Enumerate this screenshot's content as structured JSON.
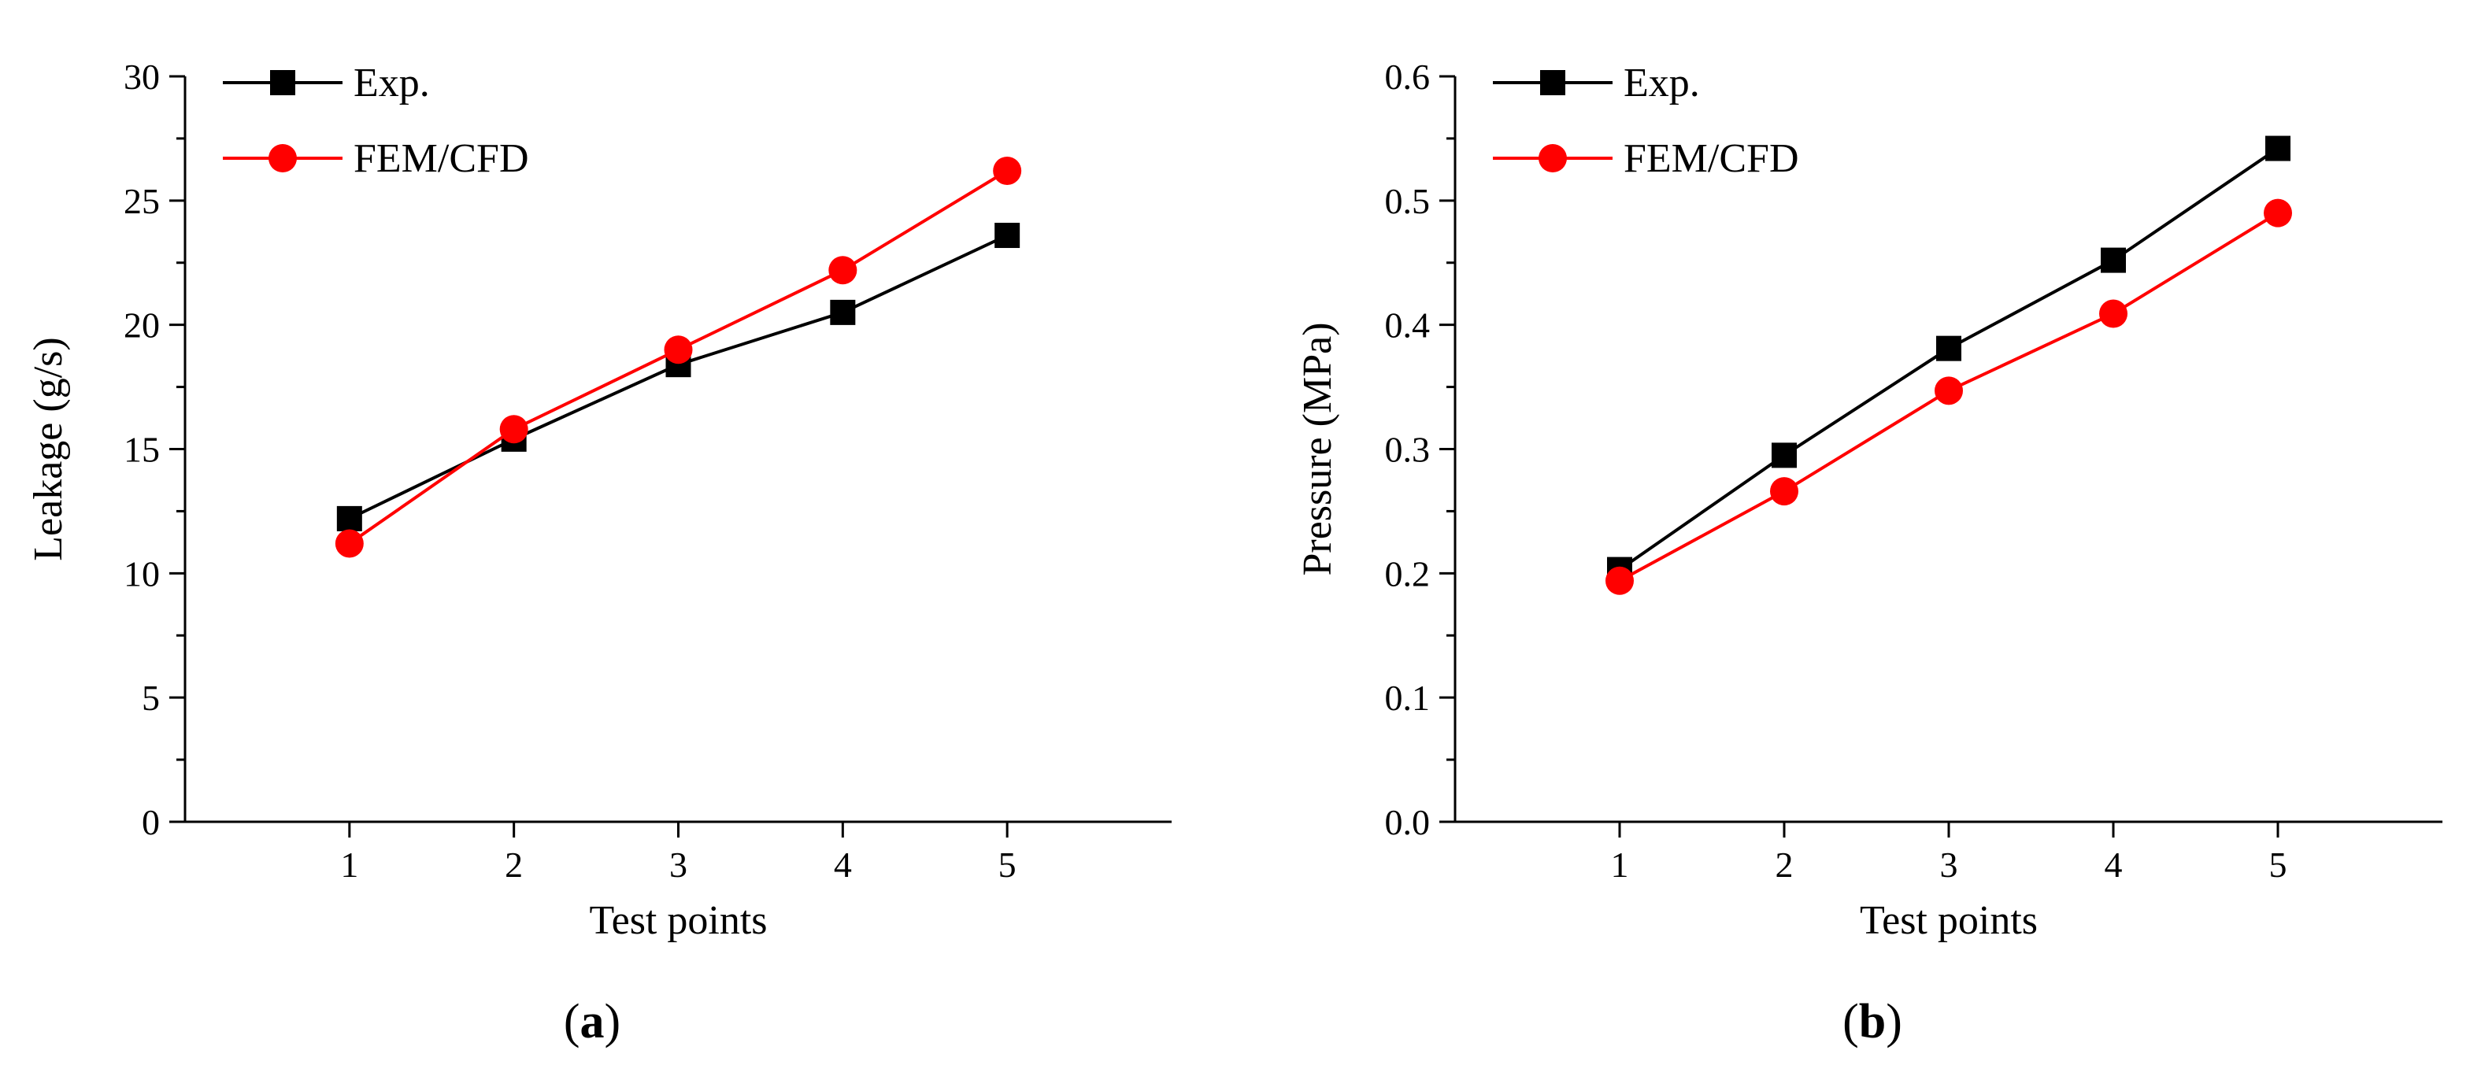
{
  "chart_data": [
    {
      "type": "line",
      "panel": "a",
      "xlabel": "Test points",
      "ylabel": "Leakage (g/s)",
      "x": [
        1,
        2,
        3,
        4,
        5
      ],
      "xlim": [
        0,
        6
      ],
      "xticks": [
        1,
        2,
        3,
        4,
        5
      ],
      "ylim": [
        0,
        30
      ],
      "yticks": [
        0,
        5,
        10,
        15,
        20,
        25,
        30
      ],
      "legend_position": "top-left",
      "series": [
        {
          "name": "Exp.",
          "color": "#000000",
          "marker": "square",
          "values": [
            12.2,
            15.4,
            18.4,
            20.5,
            23.6
          ]
        },
        {
          "name": "FEM/CFD",
          "color": "#ff0000",
          "marker": "circle",
          "values": [
            11.2,
            15.8,
            19.0,
            22.2,
            26.2
          ]
        }
      ],
      "caption": {
        "open": "(",
        "letter": "a",
        "close": ")"
      }
    },
    {
      "type": "line",
      "panel": "b",
      "xlabel": "Test points",
      "ylabel": "Pressure (MPa)",
      "x": [
        1,
        2,
        3,
        4,
        5
      ],
      "xlim": [
        0,
        6
      ],
      "xticks": [
        1,
        2,
        3,
        4,
        5
      ],
      "ylim": [
        0,
        0.6
      ],
      "yticks": [
        0.0,
        0.1,
        0.2,
        0.3,
        0.4,
        0.5,
        0.6
      ],
      "ytick_labels": [
        "0.0",
        "0.1",
        "0.2",
        "0.3",
        "0.4",
        "0.5",
        "0.6"
      ],
      "legend_position": "top-left",
      "series": [
        {
          "name": "Exp.",
          "color": "#000000",
          "marker": "square",
          "values": [
            0.203,
            0.295,
            0.381,
            0.452,
            0.542
          ]
        },
        {
          "name": "FEM/CFD",
          "color": "#ff0000",
          "marker": "circle",
          "values": [
            0.194,
            0.266,
            0.347,
            0.409,
            0.49
          ]
        }
      ],
      "caption": {
        "open": "(",
        "letter": "b",
        "close": ")"
      }
    }
  ]
}
